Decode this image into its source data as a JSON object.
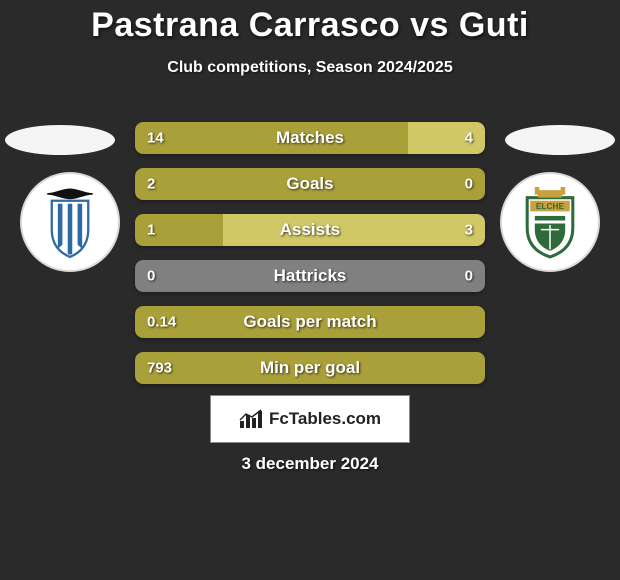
{
  "title": "Pastrana Carrasco vs Guti",
  "subtitle": "Club competitions, Season 2024/2025",
  "date": "3 december 2024",
  "footer_text": "FcTables.com",
  "colors": {
    "bar_primary": "#aaa03a",
    "bar_secondary": "#d0c765",
    "bar_empty": "#808080",
    "background": "#2a2a2a",
    "text": "#ffffff",
    "footer_bg": "#ffffff",
    "footer_text": "#222222"
  },
  "left_crest": {
    "bg": "#ffffff",
    "stripe": "#2c6aa6",
    "black": "#111111"
  },
  "right_crest": {
    "bg": "#ffffff",
    "green": "#2f6b3a",
    "gold": "#c9a040",
    "text": "ELCHE"
  },
  "stats": [
    {
      "label": "Matches",
      "left_val": "14",
      "right_val": "4",
      "left_pct": 78,
      "right_pct": 22,
      "right_color": "secondary"
    },
    {
      "label": "Goals",
      "left_val": "2",
      "right_val": "0",
      "left_pct": 100,
      "right_pct": 0,
      "right_color": "empty"
    },
    {
      "label": "Assists",
      "left_val": "1",
      "right_val": "3",
      "left_pct": 25,
      "right_pct": 75,
      "right_color": "secondary"
    },
    {
      "label": "Hattricks",
      "left_val": "0",
      "right_val": "0",
      "left_pct": 50,
      "right_pct": 50,
      "right_color": "empty",
      "left_color": "empty"
    },
    {
      "label": "Goals per match",
      "left_val": "0.14",
      "right_val": "",
      "left_pct": 100,
      "right_pct": 0,
      "right_color": "empty"
    },
    {
      "label": "Min per goal",
      "left_val": "793",
      "right_val": "",
      "left_pct": 100,
      "right_pct": 0,
      "right_color": "empty"
    }
  ]
}
